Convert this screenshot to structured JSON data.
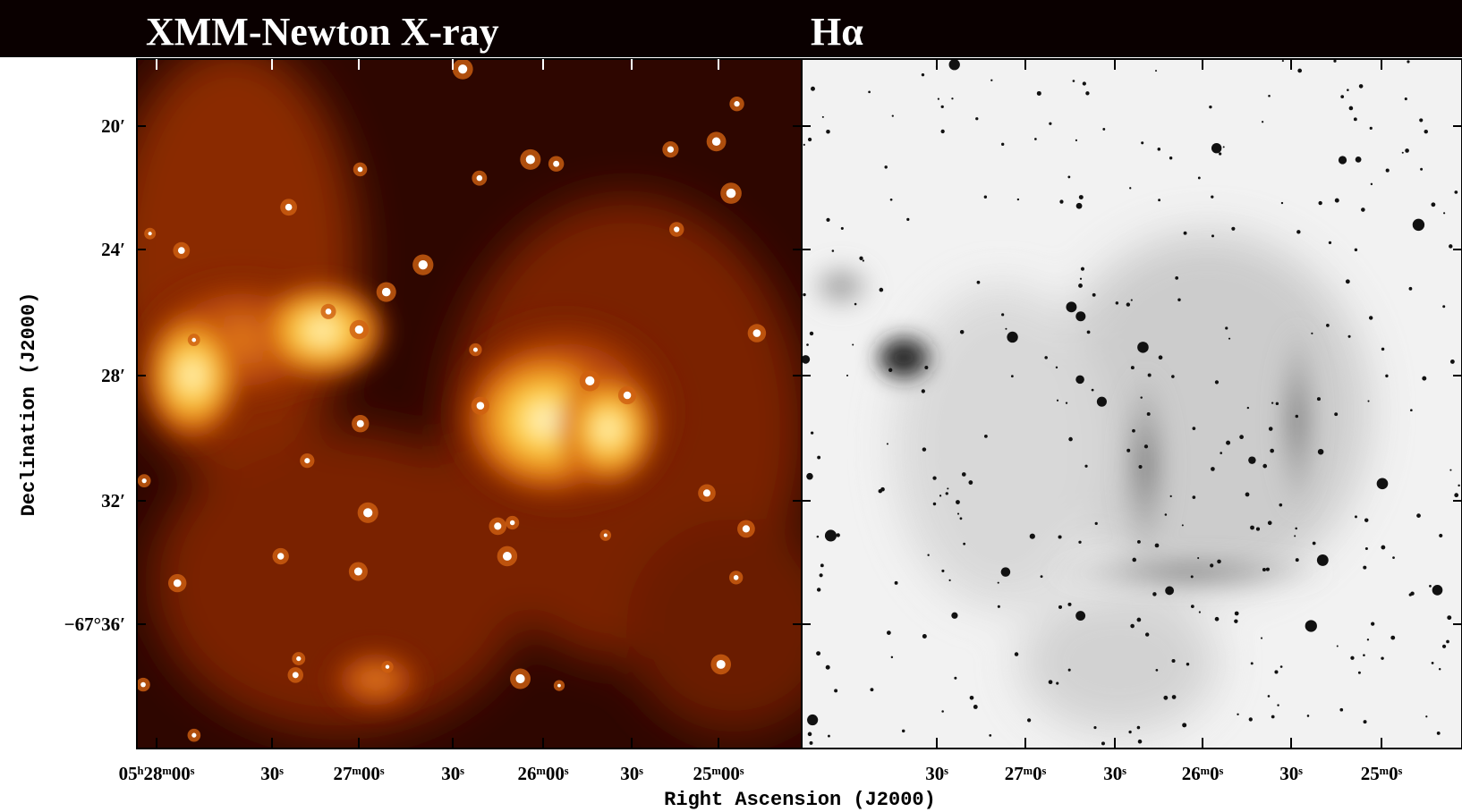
{
  "panels": [
    {
      "title": "XMM-Newton X-ray",
      "x_tick_labels": [
        "05ʰ28ᵐ00ˢ",
        "30ˢ",
        "27ᵐ00ˢ",
        "30ˢ",
        "26ᵐ00ˢ",
        "30ˢ",
        "25ᵐ00ˢ"
      ]
    },
    {
      "title": "Hα",
      "x_tick_labels": [
        "30ˢ",
        "27ᵐ0ˢ",
        "30ˢ",
        "26ᵐ0ˢ",
        "30ˢ",
        "25ᵐ0ˢ"
      ]
    }
  ],
  "y_tick_labels": [
    "20′",
    "24′",
    "28′",
    "32′",
    "−67°36′"
  ],
  "y_axis_label": "Declination (J2000)",
  "x_axis_label": "Right Ascension (J2000)"
}
